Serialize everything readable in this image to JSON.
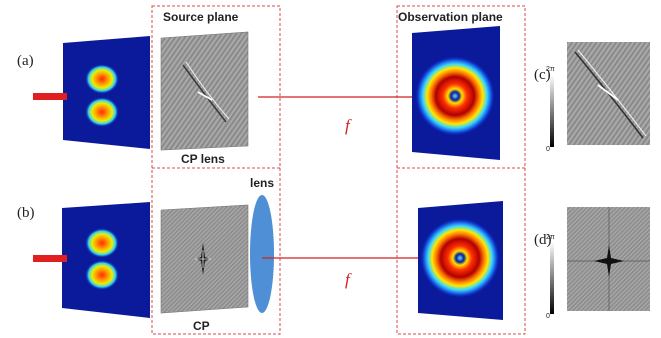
{
  "labels": {
    "panel_a": "(a)",
    "panel_b": "(b)",
    "panel_c": "(c)",
    "panel_d": "(d)",
    "source_plane": "Source plane",
    "observation_plane": "Observation plane",
    "cp_lens": "CP lens",
    "lens": "lens",
    "cp": "CP",
    "focal_a": "f",
    "focal_b": "f"
  },
  "colorbar": {
    "top_label": "2π",
    "bottom_label": "0"
  },
  "colors": {
    "beam_arrow": "#e02020",
    "dashed_frame": "#d84a4a",
    "lens_fill": "#4f8fd6",
    "field_background": "#0b1a9a"
  }
}
